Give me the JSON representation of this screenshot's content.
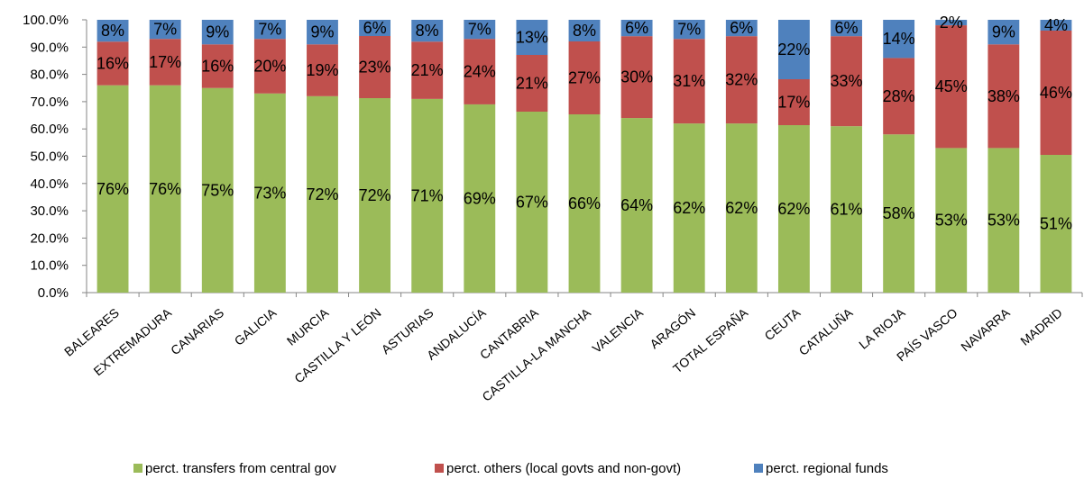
{
  "chart_data": {
    "type": "bar",
    "stacked": true,
    "categories": [
      "BALEARES",
      "EXTREMADURA",
      "CANARIAS",
      "GALICIA",
      "MURCIA",
      "CASTILLA Y LEÓN",
      "ASTURIAS",
      "ANDALUCÍA",
      "CANTABRIA",
      "CASTILLA-LA MANCHA",
      "VALENCIA",
      "ARAGÓN",
      "TOTAL ESPAÑA",
      "CEUTA",
      "CATALUÑA",
      "LA RIOJA",
      "PAÍS VASCO",
      "NAVARRA",
      "MADRID"
    ],
    "series": [
      {
        "name": "perct. transfers from central gov",
        "color": "#9BBB59",
        "values": [
          76,
          76,
          75,
          73,
          72,
          72,
          71,
          69,
          67,
          66,
          64,
          62,
          62,
          62,
          61,
          58,
          53,
          53,
          51
        ],
        "labels": [
          "76%",
          "76%",
          "75%",
          "73%",
          "72%",
          "72%",
          "71%",
          "69%",
          "67%",
          "66%",
          "64%",
          "62%",
          "62%",
          "62%",
          "61%",
          "58%",
          "53%",
          "53%",
          "51%"
        ]
      },
      {
        "name": "perct. others (local govts and non-govt)",
        "color": "#C0504D",
        "values": [
          16,
          17,
          16,
          20,
          19,
          23,
          21,
          24,
          21,
          27,
          30,
          31,
          32,
          17,
          33,
          28,
          45,
          38,
          46
        ],
        "labels": [
          "16%",
          "17%",
          "16%",
          "20%",
          "19%",
          "23%",
          "21%",
          "24%",
          "21%",
          "27%",
          "30%",
          "31%",
          "32%",
          "17%",
          "33%",
          "28%",
          "45%",
          "38%",
          "46%"
        ]
      },
      {
        "name": "perct. regional funds",
        "color": "#4F81BD",
        "values": [
          8,
          7,
          9,
          7,
          9,
          6,
          8,
          7,
          13,
          8,
          6,
          7,
          6,
          22,
          6,
          14,
          2,
          9,
          4
        ],
        "labels": [
          "8%",
          "7%",
          "9%",
          "7%",
          "9%",
          "6%",
          "8%",
          "7%",
          "13%",
          "8%",
          "6%",
          "7%",
          "6%",
          "22%",
          "6%",
          "14%",
          "2%",
          "9%",
          "4%"
        ]
      }
    ],
    "yticks": [
      "0.0%",
      "10.0%",
      "20.0%",
      "30.0%",
      "40.0%",
      "50.0%",
      "60.0%",
      "70.0%",
      "80.0%",
      "90.0%",
      "100.0%"
    ],
    "ylim": [
      0,
      100
    ],
    "grid": false,
    "legend_position": "bottom"
  }
}
